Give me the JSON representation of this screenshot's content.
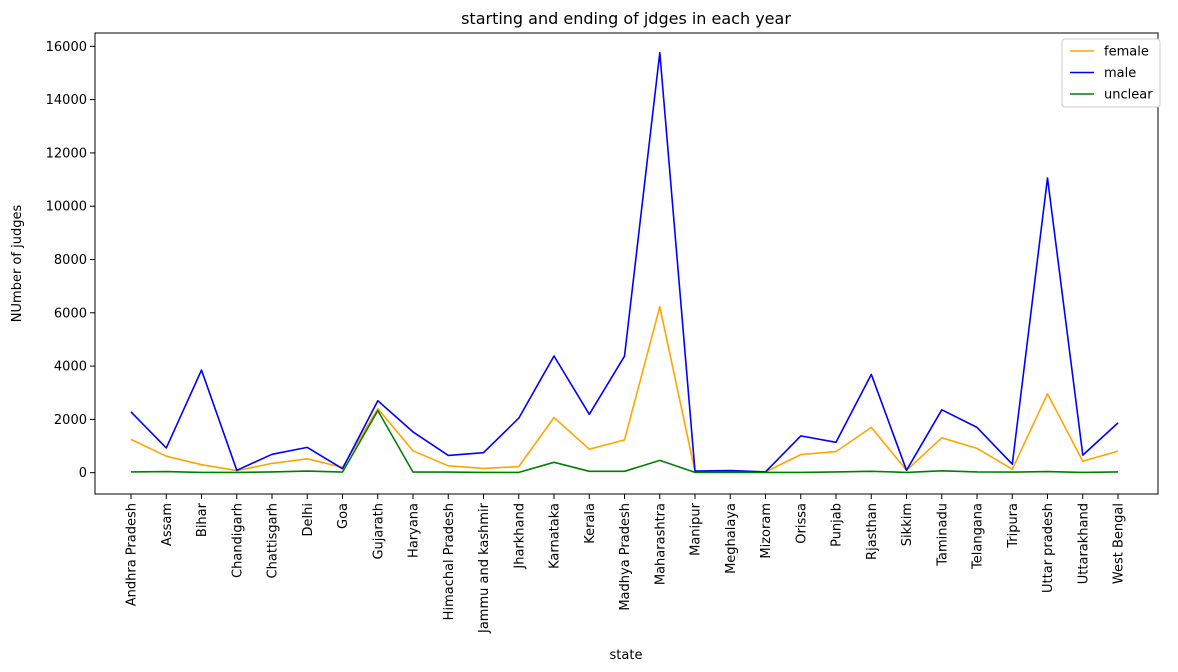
{
  "chart_data": {
    "type": "line",
    "title": "starting and ending of jdges in each year",
    "xlabel": "state",
    "ylabel": "NUmber of judges",
    "ylim": [
      -800,
      16500
    ],
    "yticks": [
      0,
      2000,
      4000,
      6000,
      8000,
      10000,
      12000,
      14000,
      16000
    ],
    "grid": false,
    "legend_position": "top-right",
    "categories": [
      "Andhra Pradesh",
      "Assam",
      "Bihar",
      "Chandigarh",
      "Chattisgarh",
      "Delhi",
      "Goa",
      "Gujarath",
      "Haryana",
      "Himachal Pradesh",
      "Jammu and kashmir",
      "Jharkhand",
      "Karnataka",
      "Kerala",
      "Madhya Pradesh",
      "Maharashtra",
      "Manipur",
      "Meghalaya",
      "Mizoram",
      "Orissa",
      "Punjab",
      "Rjasthan",
      "Sikkim",
      "Taminadu",
      "Telangana",
      "Tripura",
      "Uttar pradesh",
      "Uttarakhand",
      "West Bengal"
    ],
    "series": [
      {
        "name": "female",
        "color": "#FFA500",
        "values": [
          1250,
          620,
          300,
          80,
          350,
          520,
          200,
          2400,
          820,
          260,
          160,
          230,
          2070,
          880,
          1230,
          6230,
          40,
          50,
          30,
          680,
          790,
          1700,
          90,
          1310,
          910,
          130,
          2960,
          430,
          810
        ]
      },
      {
        "name": "male",
        "color": "#0000FF",
        "values": [
          2280,
          930,
          3850,
          90,
          690,
          950,
          150,
          2700,
          1530,
          650,
          750,
          2050,
          4380,
          2190,
          4370,
          15760,
          60,
          80,
          30,
          1380,
          1140,
          3690,
          90,
          2360,
          1700,
          320,
          11060,
          660,
          1870
        ]
      },
      {
        "name": "unclear",
        "color": "#008000",
        "values": [
          30,
          40,
          10,
          10,
          30,
          60,
          20,
          2330,
          20,
          20,
          10,
          10,
          390,
          50,
          50,
          460,
          10,
          10,
          10,
          10,
          30,
          50,
          10,
          70,
          30,
          20,
          40,
          10,
          30
        ]
      }
    ]
  }
}
